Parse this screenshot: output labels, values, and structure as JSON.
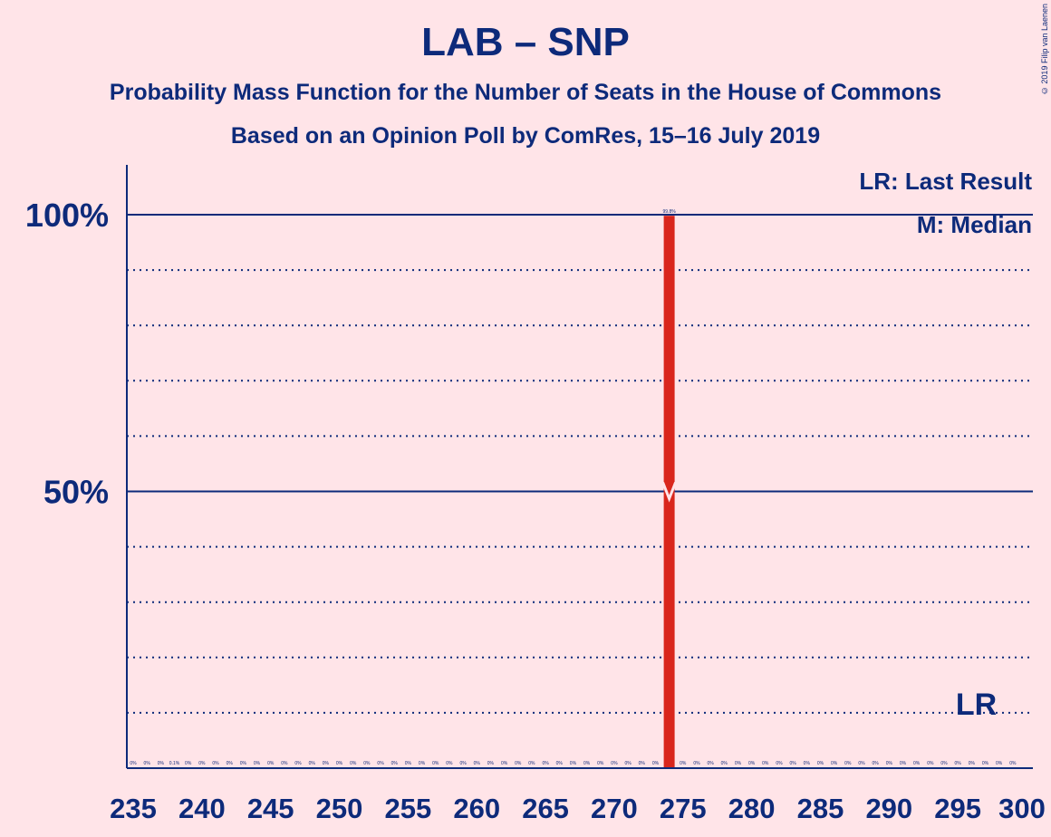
{
  "chart_data": {
    "type": "bar",
    "title": "LAB – SNP",
    "subtitle": "Probability Mass Function for the Number of Seats in the House of Commons",
    "subtitle2": "Based on an Opinion Poll by ComRes, 15–16 July 2019",
    "copyright": "© 2019 Filip van Laenen",
    "x": [
      235,
      236,
      237,
      238,
      239,
      240,
      241,
      242,
      243,
      244,
      245,
      246,
      247,
      248,
      249,
      250,
      251,
      252,
      253,
      254,
      255,
      256,
      257,
      258,
      259,
      260,
      261,
      262,
      263,
      264,
      265,
      266,
      267,
      268,
      269,
      270,
      271,
      272,
      273,
      274,
      275,
      276,
      277,
      278,
      279,
      280,
      281,
      282,
      283,
      284,
      285,
      286,
      287,
      288,
      289,
      290,
      291,
      292,
      293,
      294,
      295,
      296,
      297,
      298,
      299,
      300
    ],
    "values": [
      0,
      0,
      0,
      0.1,
      0,
      0,
      0,
      0,
      0,
      0,
      0,
      0,
      0,
      0,
      0,
      0,
      0,
      0,
      0,
      0,
      0,
      0,
      0,
      0,
      0,
      0,
      0,
      0,
      0,
      0,
      0,
      0,
      0,
      0,
      0,
      0,
      0,
      0,
      0,
      99.8,
      0,
      0,
      0,
      0,
      0,
      0,
      0,
      0,
      0,
      0,
      0,
      0,
      0,
      0,
      0,
      0,
      0,
      0,
      0,
      0,
      0,
      0,
      0,
      0,
      0,
      0
    ],
    "value_labels": [
      "0%",
      "0%",
      "0%",
      "0.1%",
      "0%",
      "0%",
      "0%",
      "0%",
      "0%",
      "0%",
      "0%",
      "0%",
      "0%",
      "0%",
      "0%",
      "0%",
      "0%",
      "0%",
      "0%",
      "0%",
      "0%",
      "0%",
      "0%",
      "0%",
      "0%",
      "0%",
      "0%",
      "0%",
      "0%",
      "0%",
      "0%",
      "0%",
      "0%",
      "0%",
      "0%",
      "0%",
      "0%",
      "0%",
      "0%",
      "99.8%",
      "0%",
      "0%",
      "0%",
      "0%",
      "0%",
      "0%",
      "0%",
      "0%",
      "0%",
      "0%",
      "0%",
      "0%",
      "0%",
      "0%",
      "0%",
      "0%",
      "0%",
      "0%",
      "0%",
      "0%",
      "0%",
      "0%",
      "0%",
      "0%",
      "0%",
      ""
    ],
    "x_ticks": [
      235,
      240,
      245,
      250,
      255,
      260,
      265,
      270,
      275,
      280,
      285,
      290,
      295,
      300
    ],
    "y_ticks": [
      {
        "value": 50,
        "label": "50%"
      },
      {
        "value": 100,
        "label": "100%"
      }
    ],
    "y_gridlines_dotted": [
      10,
      20,
      30,
      40,
      60,
      70,
      80,
      90
    ],
    "ylim": [
      0,
      100
    ],
    "median": 274,
    "median_marker_label": "M",
    "last_result": 297,
    "last_result_label": "LR",
    "legend": [
      "LR: Last Result",
      "M: Median"
    ],
    "colors": {
      "background": "#ffe4e8",
      "text": "#0d2a7a",
      "bar": "#d9261c",
      "axis": "#0d2a7a"
    }
  }
}
